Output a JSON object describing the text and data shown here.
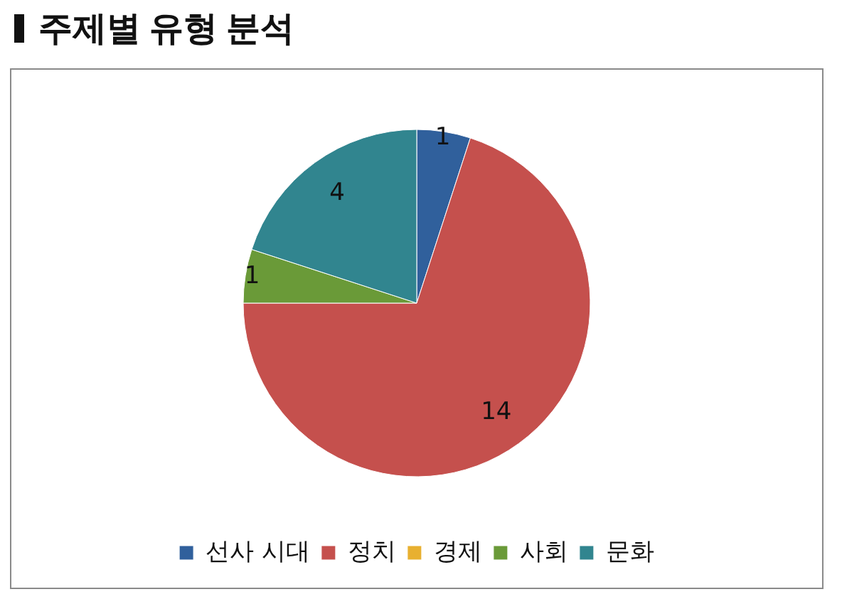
{
  "chart_data": {
    "type": "pie",
    "title": "주제별 유형 분석",
    "categories": [
      "선사 시대",
      "정치",
      "경제",
      "사회",
      "문화"
    ],
    "values": [
      1,
      14,
      0,
      1,
      4
    ],
    "colors": [
      "#30609c",
      "#c5504d",
      "#e8b030",
      "#6a9a38",
      "#31858f"
    ],
    "value_labels": [
      "1",
      "14",
      null,
      "1",
      "4"
    ],
    "legend": "bottom"
  }
}
